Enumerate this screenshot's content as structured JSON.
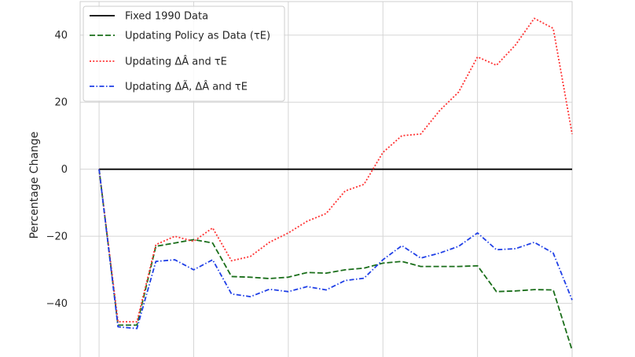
{
  "chart_data": {
    "type": "line",
    "title": "",
    "xlabel": "",
    "ylabel": "Percentage Change",
    "xlim": [
      0,
      26
    ],
    "ylim": [
      -56,
      50
    ],
    "yticks": [
      -40,
      -20,
      0,
      20,
      40
    ],
    "xgrid": [
      1,
      6,
      11,
      16,
      21,
      26
    ],
    "grid": true,
    "legend_position": "top-left",
    "x": [
      1,
      2,
      3,
      4,
      5,
      6,
      7,
      8,
      9,
      10,
      11,
      12,
      13,
      14,
      15,
      16,
      17,
      18,
      19,
      20,
      21,
      22,
      23,
      24,
      25,
      26
    ],
    "series": [
      {
        "name": "Fixed 1990 Data",
        "color": "#000000",
        "dash": "solid",
        "values": [
          0,
          0,
          0,
          0,
          0,
          0,
          0,
          0,
          0,
          0,
          0,
          0,
          0,
          0,
          0,
          0,
          0,
          0,
          0,
          0,
          0,
          0,
          0,
          0,
          0,
          0
        ]
      },
      {
        "name": "Updating Policy as Data (τE)",
        "color": "#1a6e1a",
        "dash": "dashed",
        "values": [
          0,
          -46.5,
          -46.5,
          -23,
          -22,
          -21,
          -22,
          -32,
          -32.2,
          -32.6,
          -32.2,
          -30.8,
          -31,
          -30,
          -29.5,
          -28,
          -27.5,
          -29,
          -29,
          -29,
          -28.8,
          -36.5,
          -36.3,
          -35.9,
          -36,
          -54
        ]
      },
      {
        "name": "Updating ΔÂ and τE",
        "color": "#ff3333",
        "dash": "dotted",
        "values": [
          0,
          -45.5,
          -45.5,
          -22.5,
          -20,
          -21.5,
          -17.5,
          -27.3,
          -26,
          -21.8,
          -19,
          -15.5,
          -13.2,
          -6.5,
          -4.5,
          5,
          10,
          10.5,
          17.5,
          23,
          33.5,
          31,
          37,
          45,
          42,
          10.5
        ]
      },
      {
        "name": "Updating ΔÃ, ΔÂ and τE",
        "color": "#1f3fe6",
        "dash": "dashdot",
        "values": [
          0,
          -47,
          -47.5,
          -27.5,
          -27,
          -30,
          -27,
          -37.2,
          -38,
          -35.8,
          -36.5,
          -35,
          -36,
          -33.2,
          -32.5,
          -27,
          -22.8,
          -26.5,
          -25,
          -23,
          -19,
          -24,
          -23.7,
          -21.8,
          -25,
          -39
        ]
      }
    ]
  }
}
